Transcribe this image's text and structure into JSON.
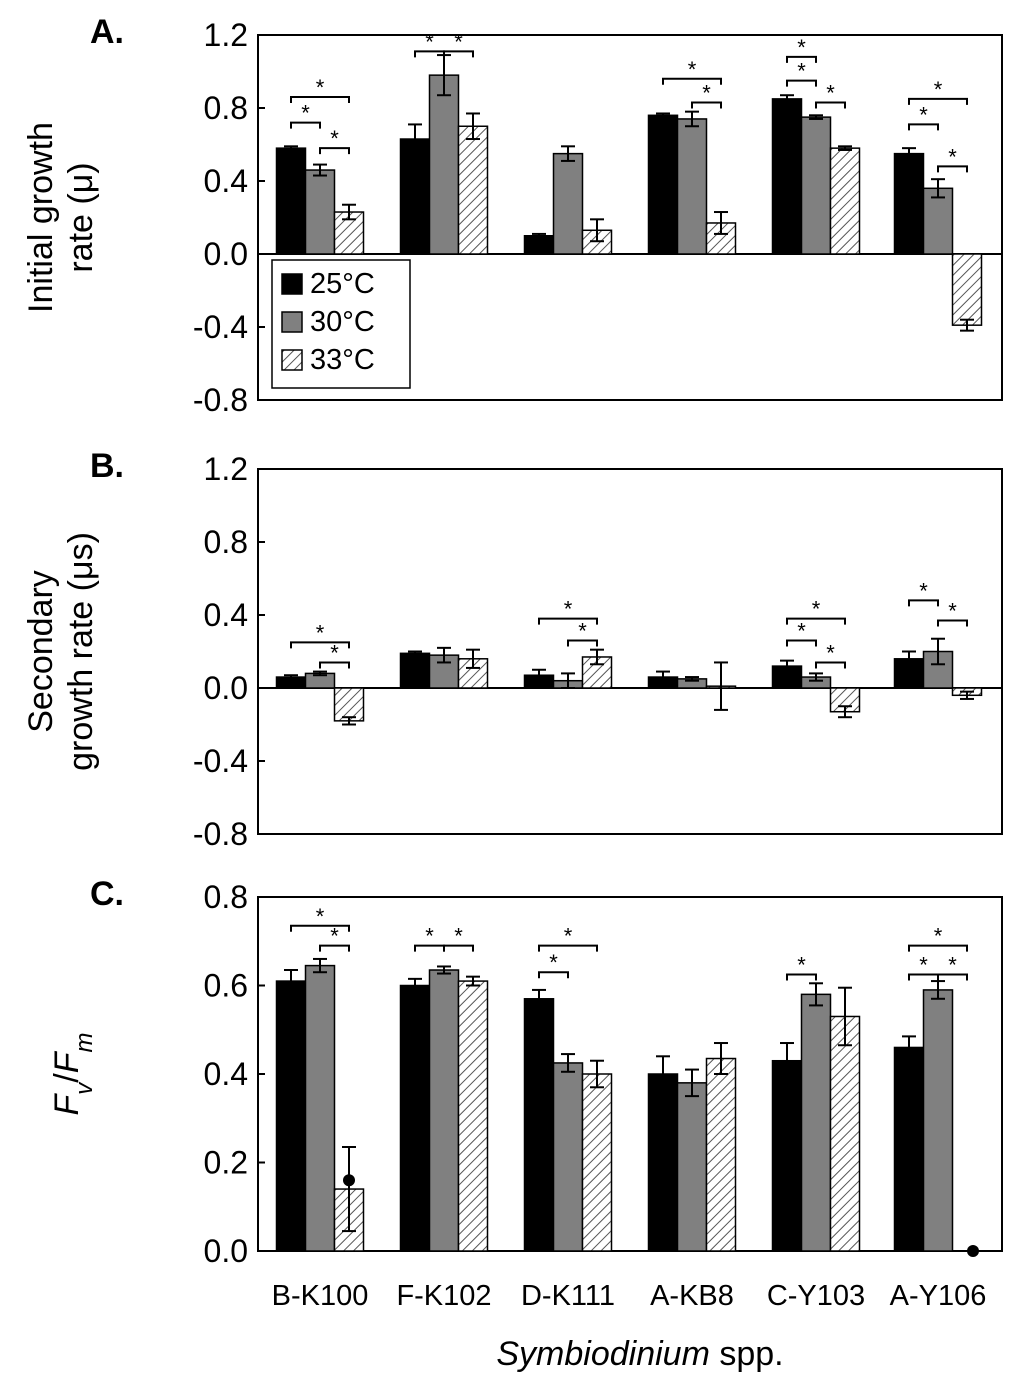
{
  "xlabel": {
    "italic": "Symbiodinium",
    "rest": " spp."
  },
  "categories": [
    "B-K100",
    "F-K102",
    "D-K111",
    "A-KB8",
    "C-Y103",
    "A-Y106"
  ],
  "colors": {
    "t25": "#000000",
    "t30": "#808080",
    "t33_fill": "#ffffff",
    "t33_hatch": "#555555"
  },
  "legend": {
    "placement": "inside-left, below zero line of panel A",
    "items": [
      "25°C",
      "30°C",
      "33°C"
    ]
  },
  "chart_data": [
    {
      "type": "bar",
      "panel": "A.",
      "ylabel_lines": [
        "Initial growth",
        "rate (μ)"
      ],
      "ylim": [
        -0.8,
        1.2
      ],
      "yticks": [
        "1.2",
        "0.8",
        "0.4",
        "0.0",
        "-0.4",
        "-0.8"
      ],
      "ytick_values": [
        1.2,
        0.8,
        0.4,
        0.0,
        -0.4,
        -0.8
      ],
      "categories": [
        "B-K100",
        "F-K102",
        "D-K111",
        "A-KB8",
        "C-Y103",
        "A-Y106"
      ],
      "series": [
        {
          "name": "25°C",
          "values": [
            0.58,
            0.63,
            0.1,
            0.76,
            0.85,
            0.55
          ],
          "errors": [
            0.01,
            0.08,
            0.01,
            0.01,
            0.02,
            0.03
          ]
        },
        {
          "name": "30°C",
          "values": [
            0.46,
            0.98,
            0.55,
            0.74,
            0.75,
            0.36
          ],
          "errors": [
            0.03,
            0.11,
            0.04,
            0.04,
            0.01,
            0.05
          ]
        },
        {
          "name": "33°C",
          "values": [
            0.23,
            0.7,
            0.13,
            0.17,
            0.58,
            -0.39
          ],
          "errors": [
            0.04,
            0.07,
            0.06,
            0.06,
            0.01,
            0.03
          ]
        }
      ],
      "significance": [
        {
          "cat": 0,
          "from": 0,
          "to": 1,
          "y": 0.72,
          "label": "*"
        },
        {
          "cat": 0,
          "from": 0,
          "to": 2,
          "y": 0.86,
          "label": "*"
        },
        {
          "cat": 0,
          "from": 1,
          "to": 2,
          "y": 0.58,
          "label": "*"
        },
        {
          "cat": 1,
          "from": 0,
          "to": 1,
          "y": 1.11,
          "label": "*"
        },
        {
          "cat": 1,
          "from": 1,
          "to": 2,
          "y": 1.11,
          "label": "*"
        },
        {
          "cat": 3,
          "from": 0,
          "to": 2,
          "y": 0.96,
          "label": "*"
        },
        {
          "cat": 3,
          "from": 1,
          "to": 2,
          "y": 0.83,
          "label": "*"
        },
        {
          "cat": 4,
          "from": 0,
          "to": 1,
          "y": 1.08,
          "label": "*"
        },
        {
          "cat": 4,
          "from": 0,
          "to": 1,
          "y": 0.95,
          "label": "*"
        },
        {
          "cat": 4,
          "from": 1,
          "to": 2,
          "y": 0.83,
          "label": "*"
        },
        {
          "cat": 5,
          "from": 0,
          "to": 2,
          "y": 0.85,
          "label": "*"
        },
        {
          "cat": 5,
          "from": 0,
          "to": 1,
          "y": 0.71,
          "label": "*"
        },
        {
          "cat": 5,
          "from": 1,
          "to": 2,
          "y": 0.48,
          "label": "*"
        }
      ],
      "markers": []
    },
    {
      "type": "bar",
      "panel": "B.",
      "ylabel_lines": [
        "Secondary",
        "growth rate (μs)"
      ],
      "ylim": [
        -0.8,
        1.2
      ],
      "yticks": [
        "1.2",
        "0.8",
        "0.4",
        "0.0",
        "-0.4",
        "-0.8"
      ],
      "ytick_values": [
        1.2,
        0.8,
        0.4,
        0.0,
        -0.4,
        -0.8
      ],
      "categories": [
        "B-K100",
        "F-K102",
        "D-K111",
        "A-KB8",
        "C-Y103",
        "A-Y106"
      ],
      "series": [
        {
          "name": "25°C",
          "values": [
            0.06,
            0.19,
            0.07,
            0.06,
            0.12,
            0.16
          ],
          "errors": [
            0.01,
            0.01,
            0.03,
            0.03,
            0.03,
            0.04
          ]
        },
        {
          "name": "30°C",
          "values": [
            0.08,
            0.18,
            0.04,
            0.05,
            0.06,
            0.2
          ],
          "errors": [
            0.01,
            0.04,
            0.04,
            0.01,
            0.02,
            0.07
          ]
        },
        {
          "name": "33°C",
          "values": [
            -0.18,
            0.16,
            0.17,
            0.01,
            -0.13,
            -0.04
          ],
          "errors": [
            0.02,
            0.05,
            0.04,
            0.13,
            0.03,
            0.02
          ]
        }
      ],
      "significance": [
        {
          "cat": 0,
          "from": 0,
          "to": 2,
          "y": 0.25,
          "label": "*"
        },
        {
          "cat": 0,
          "from": 1,
          "to": 2,
          "y": 0.14,
          "label": "*"
        },
        {
          "cat": 2,
          "from": 0,
          "to": 2,
          "y": 0.38,
          "label": "*"
        },
        {
          "cat": 2,
          "from": 1,
          "to": 2,
          "y": 0.26,
          "label": "*"
        },
        {
          "cat": 4,
          "from": 0,
          "to": 2,
          "y": 0.38,
          "label": "*"
        },
        {
          "cat": 4,
          "from": 0,
          "to": 1,
          "y": 0.26,
          "label": "*"
        },
        {
          "cat": 4,
          "from": 1,
          "to": 2,
          "y": 0.14,
          "label": "*"
        },
        {
          "cat": 5,
          "from": 0,
          "to": 1,
          "y": 0.48,
          "label": "*"
        },
        {
          "cat": 5,
          "from": 1,
          "to": 2,
          "y": 0.37,
          "label": "*"
        }
      ],
      "markers": []
    },
    {
      "type": "bar",
      "panel": "C.",
      "ylabel_italic": {
        "main1": "F",
        "sub1": "v",
        "slash": "/",
        "main2": "F",
        "sub2": "m"
      },
      "ylim": [
        0.0,
        0.8
      ],
      "yticks": [
        "0.8",
        "0.6",
        "0.4",
        "0.2",
        "0.0"
      ],
      "ytick_values": [
        0.8,
        0.6,
        0.4,
        0.2,
        0.0
      ],
      "categories": [
        "B-K100",
        "F-K102",
        "D-K111",
        "A-KB8",
        "C-Y103",
        "A-Y106"
      ],
      "series": [
        {
          "name": "25°C",
          "values": [
            0.61,
            0.6,
            0.57,
            0.4,
            0.43,
            0.46
          ],
          "errors": [
            0.025,
            0.015,
            0.02,
            0.04,
            0.04,
            0.025
          ]
        },
        {
          "name": "30°C",
          "values": [
            0.645,
            0.635,
            0.425,
            0.38,
            0.58,
            0.59
          ],
          "errors": [
            0.015,
            0.008,
            0.02,
            0.03,
            0.025,
            0.02
          ]
        },
        {
          "name": "33°C",
          "values": [
            0.14,
            0.61,
            0.4,
            0.435,
            0.53,
            0.0
          ],
          "errors": [
            0.095,
            0.01,
            0.03,
            0.035,
            0.065,
            0.0
          ]
        }
      ],
      "significance": [
        {
          "cat": 0,
          "from": 0,
          "to": 2,
          "y": 0.735,
          "label": "*"
        },
        {
          "cat": 0,
          "from": 1,
          "to": 2,
          "y": 0.69,
          "label": "*"
        },
        {
          "cat": 1,
          "from": 0,
          "to": 1,
          "y": 0.69,
          "label": "*"
        },
        {
          "cat": 1,
          "from": 1,
          "to": 2,
          "y": 0.69,
          "label": "*"
        },
        {
          "cat": 2,
          "from": 0,
          "to": 2,
          "y": 0.69,
          "label": "*"
        },
        {
          "cat": 2,
          "from": 0,
          "to": 1,
          "y": 0.63,
          "label": "*"
        },
        {
          "cat": 4,
          "from": 0,
          "to": 1,
          "y": 0.625,
          "label": "*"
        },
        {
          "cat": 5,
          "from": 0,
          "to": 2,
          "y": 0.69,
          "label": "*"
        },
        {
          "cat": 5,
          "from": 0,
          "to": 1,
          "y": 0.625,
          "label": "*"
        },
        {
          "cat": 5,
          "from": 1,
          "to": 2,
          "y": 0.625,
          "label": "*"
        }
      ],
      "markers": [
        {
          "cat": 0,
          "series": 2,
          "value": 0.16
        },
        {
          "cat": 5,
          "series": 2,
          "value": 0.0
        }
      ]
    }
  ]
}
